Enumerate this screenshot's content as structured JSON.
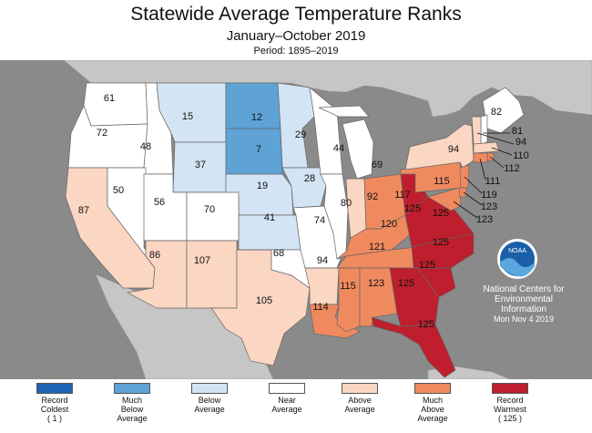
{
  "title": "Statewide Average Temperature Ranks",
  "subtitle": "January–October 2019",
  "period": "Period: 1895–2019",
  "colors": {
    "ocean": "#8a8a8a",
    "neighbor": "#c6c6c6",
    "record_coldest": "#1f64b4",
    "much_below": "#5fa3d6",
    "below": "#d3e5f4",
    "near": "#ffffff",
    "above": "#fbd6c2",
    "much_above": "#ef8a5f",
    "record_warmest": "#be1e2d"
  },
  "states": [
    {
      "abbr": "WA",
      "rank": "61",
      "category": "near"
    },
    {
      "abbr": "OR",
      "rank": "72",
      "category": "near"
    },
    {
      "abbr": "ID",
      "rank": "48",
      "category": "near"
    },
    {
      "abbr": "MT",
      "rank": "15",
      "category": "below"
    },
    {
      "abbr": "ND",
      "rank": "12",
      "category": "much_below"
    },
    {
      "abbr": "SD",
      "rank": "7",
      "category": "much_below"
    },
    {
      "abbr": "WY",
      "rank": "37",
      "category": "below"
    },
    {
      "abbr": "MN",
      "rank": "29",
      "category": "below"
    },
    {
      "abbr": "NE",
      "rank": "19",
      "category": "below"
    },
    {
      "abbr": "IA",
      "rank": "28",
      "category": "below"
    },
    {
      "abbr": "KS",
      "rank": "41",
      "category": "below"
    },
    {
      "abbr": "CA",
      "rank": "87",
      "category": "above"
    },
    {
      "abbr": "NV",
      "rank": "50",
      "category": "near"
    },
    {
      "abbr": "UT",
      "rank": "56",
      "category": "near"
    },
    {
      "abbr": "CO",
      "rank": "70",
      "category": "near"
    },
    {
      "abbr": "AZ",
      "rank": "86",
      "category": "above"
    },
    {
      "abbr": "NM",
      "rank": "107",
      "category": "above"
    },
    {
      "abbr": "TX",
      "rank": "105",
      "category": "above"
    },
    {
      "abbr": "OK",
      "rank": "68",
      "category": "near"
    },
    {
      "abbr": "MO",
      "rank": "74",
      "category": "near"
    },
    {
      "abbr": "AR",
      "rank": "94",
      "category": "above"
    },
    {
      "abbr": "LA",
      "rank": "114",
      "category": "much_above"
    },
    {
      "abbr": "WI",
      "rank": "44",
      "category": "near"
    },
    {
      "abbr": "MI",
      "rank": "69",
      "category": "near"
    },
    {
      "abbr": "IL",
      "rank": "80",
      "category": "near"
    },
    {
      "abbr": "IN",
      "rank": "92",
      "category": "above"
    },
    {
      "abbr": "OH",
      "rank": "117",
      "category": "much_above"
    },
    {
      "abbr": "KY",
      "rank": "120",
      "category": "much_above"
    },
    {
      "abbr": "TN",
      "rank": "121",
      "category": "much_above"
    },
    {
      "abbr": "MS",
      "rank": "115",
      "category": "much_above"
    },
    {
      "abbr": "AL",
      "rank": "123",
      "category": "much_above"
    },
    {
      "abbr": "GA",
      "rank": "125",
      "category": "record_warmest"
    },
    {
      "abbr": "FL",
      "rank": "125",
      "category": "record_warmest"
    },
    {
      "abbr": "SC",
      "rank": "125",
      "category": "record_warmest"
    },
    {
      "abbr": "NC",
      "rank": "125",
      "category": "record_warmest"
    },
    {
      "abbr": "VA",
      "rank": "125",
      "category": "record_warmest"
    },
    {
      "abbr": "WV",
      "rank": "125",
      "category": "record_warmest"
    },
    {
      "abbr": "PA",
      "rank": "115",
      "category": "much_above"
    },
    {
      "abbr": "NY",
      "rank": "94",
      "category": "above"
    },
    {
      "abbr": "ME",
      "rank": "82",
      "category": "near"
    },
    {
      "abbr": "NH",
      "rank": "81",
      "category": "near"
    },
    {
      "abbr": "VT",
      "rank": "94",
      "category": "above"
    },
    {
      "abbr": "MA",
      "rank": "110",
      "category": "above"
    },
    {
      "abbr": "RI",
      "rank": "112",
      "category": "much_above"
    },
    {
      "abbr": "CT",
      "rank": "111",
      "category": "much_above"
    },
    {
      "abbr": "NJ",
      "rank": "119",
      "category": "much_above"
    },
    {
      "abbr": "DE",
      "rank": "123",
      "category": "much_above"
    },
    {
      "abbr": "MD",
      "rank": "123",
      "category": "much_above"
    }
  ],
  "noaa": {
    "logo_text": "NOAA",
    "line1": "National Centers for",
    "line2": "Environmental",
    "line3": "Information",
    "date": "Mon Nov  4 2019"
  },
  "legend": [
    {
      "category": "record_coldest",
      "label": "Record\nColdest\n( 1 )"
    },
    {
      "category": "much_below",
      "label": "Much\nBelow\nAverage"
    },
    {
      "category": "below",
      "label": "Below\nAverage"
    },
    {
      "category": "near",
      "label": "Near\nAverage"
    },
    {
      "category": "above",
      "label": "Above\nAverage"
    },
    {
      "category": "much_above",
      "label": "Much\nAbove\nAverage"
    },
    {
      "category": "record_warmest",
      "label": "Record\nWarmest\n( 125 )"
    }
  ]
}
